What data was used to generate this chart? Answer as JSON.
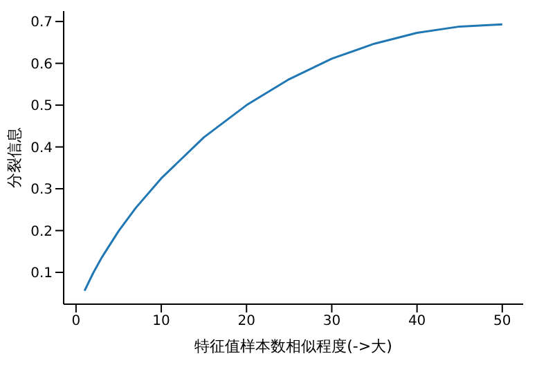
{
  "chart_data": {
    "type": "line",
    "xlabel": "特征值样本数相似程度(->大)",
    "ylabel": "分裂信息",
    "x": [
      1,
      2,
      3,
      5,
      7,
      10,
      15,
      20,
      25,
      30,
      35,
      40,
      45,
      50
    ],
    "series": [
      {
        "color": "#1f77b4",
        "values": [
          0.056,
          0.098,
          0.135,
          0.199,
          0.254,
          0.325,
          0.423,
          0.5,
          0.562,
          0.611,
          0.647,
          0.673,
          0.688,
          0.693
        ]
      }
    ],
    "xlim": [
      -1.45,
      52.45
    ],
    "xticks": [
      0,
      10,
      20,
      30,
      40,
      50
    ],
    "ylim": [
      0.024,
      0.725
    ],
    "yticks": [
      0.1,
      0.2,
      0.3,
      0.4,
      0.5,
      0.6,
      0.7
    ],
    "grid": false,
    "marker": "none",
    "line_style": "solid",
    "legend": false
  }
}
